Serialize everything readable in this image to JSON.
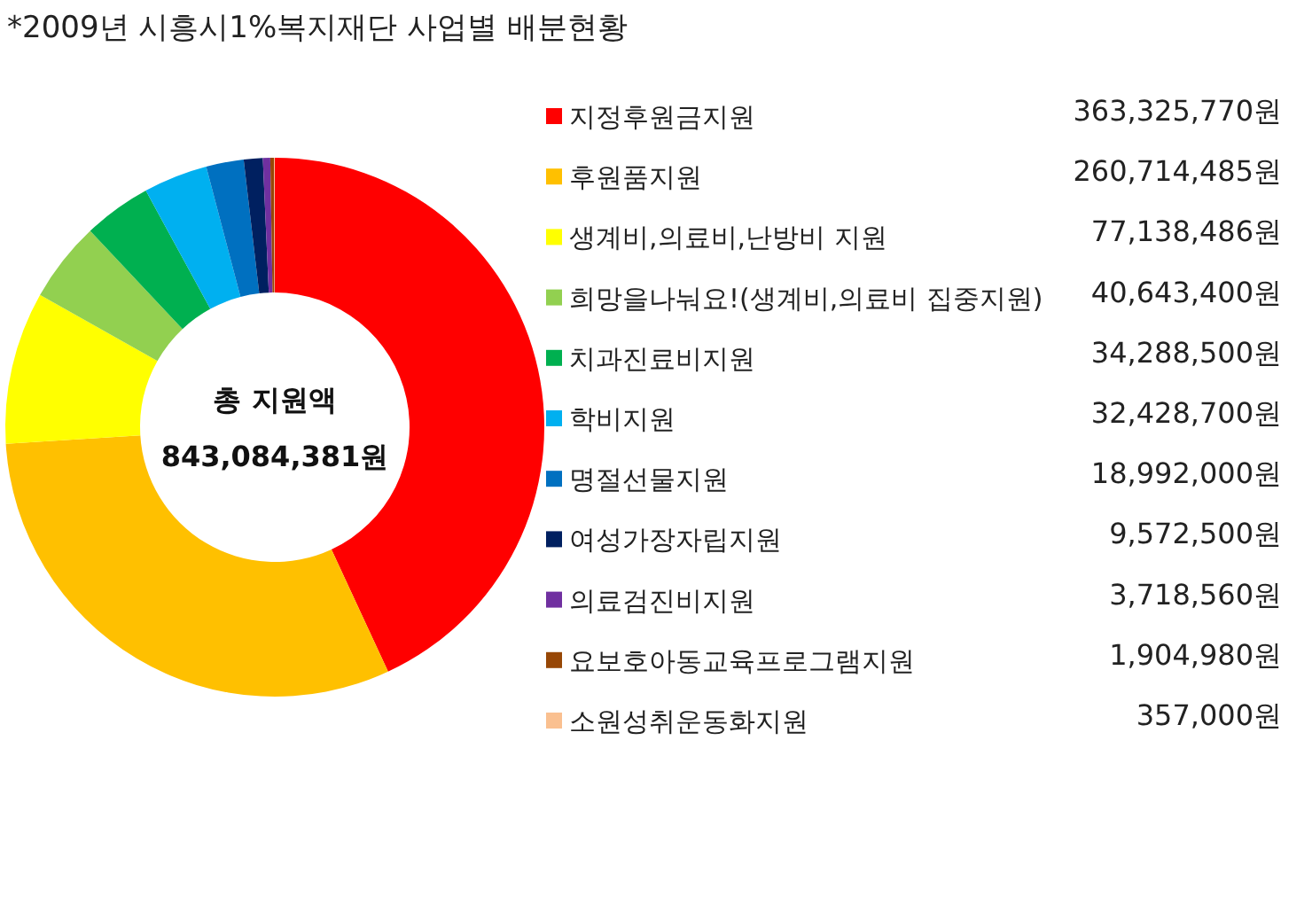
{
  "chart_data": {
    "type": "donut",
    "title": "*2009년 시흥시1%복지재단 사업별 배분현황",
    "categories": [
      "지정후원금지원",
      "후원품지원",
      "생계비,의료비,난방비 지원",
      "희망을나눠요!(생계비,의료비 집중지원)",
      "치과진료비지원",
      "학비지원",
      "명절선물지원",
      "여성가장자립지원",
      "의료검진비지원",
      "요보호아동교육프로그램지원",
      "소원성취운동화지원"
    ],
    "values": [
      363325770,
      260714485,
      77138486,
      40643400,
      34288500,
      32428700,
      18992000,
      9572500,
      3718560,
      1904980,
      357000
    ],
    "value_labels": [
      "363,325,770원",
      "260,714,485원",
      "77,138,486원",
      "40,643,400원",
      "34,288,500원",
      "32,428,700원",
      "18,992,000원",
      "9,572,500원",
      "3,718,560원",
      "1,904,980원",
      "357,000원"
    ],
    "colors": [
      "#ff0000",
      "#ffc000",
      "#ffff00",
      "#92d050",
      "#00b050",
      "#00b0f0",
      "#0070c0",
      "#002060",
      "#7030a0",
      "#974706",
      "#fac090"
    ],
    "annotations": [
      "총 지원액",
      "843,084,381원"
    ],
    "legend": "right"
  }
}
